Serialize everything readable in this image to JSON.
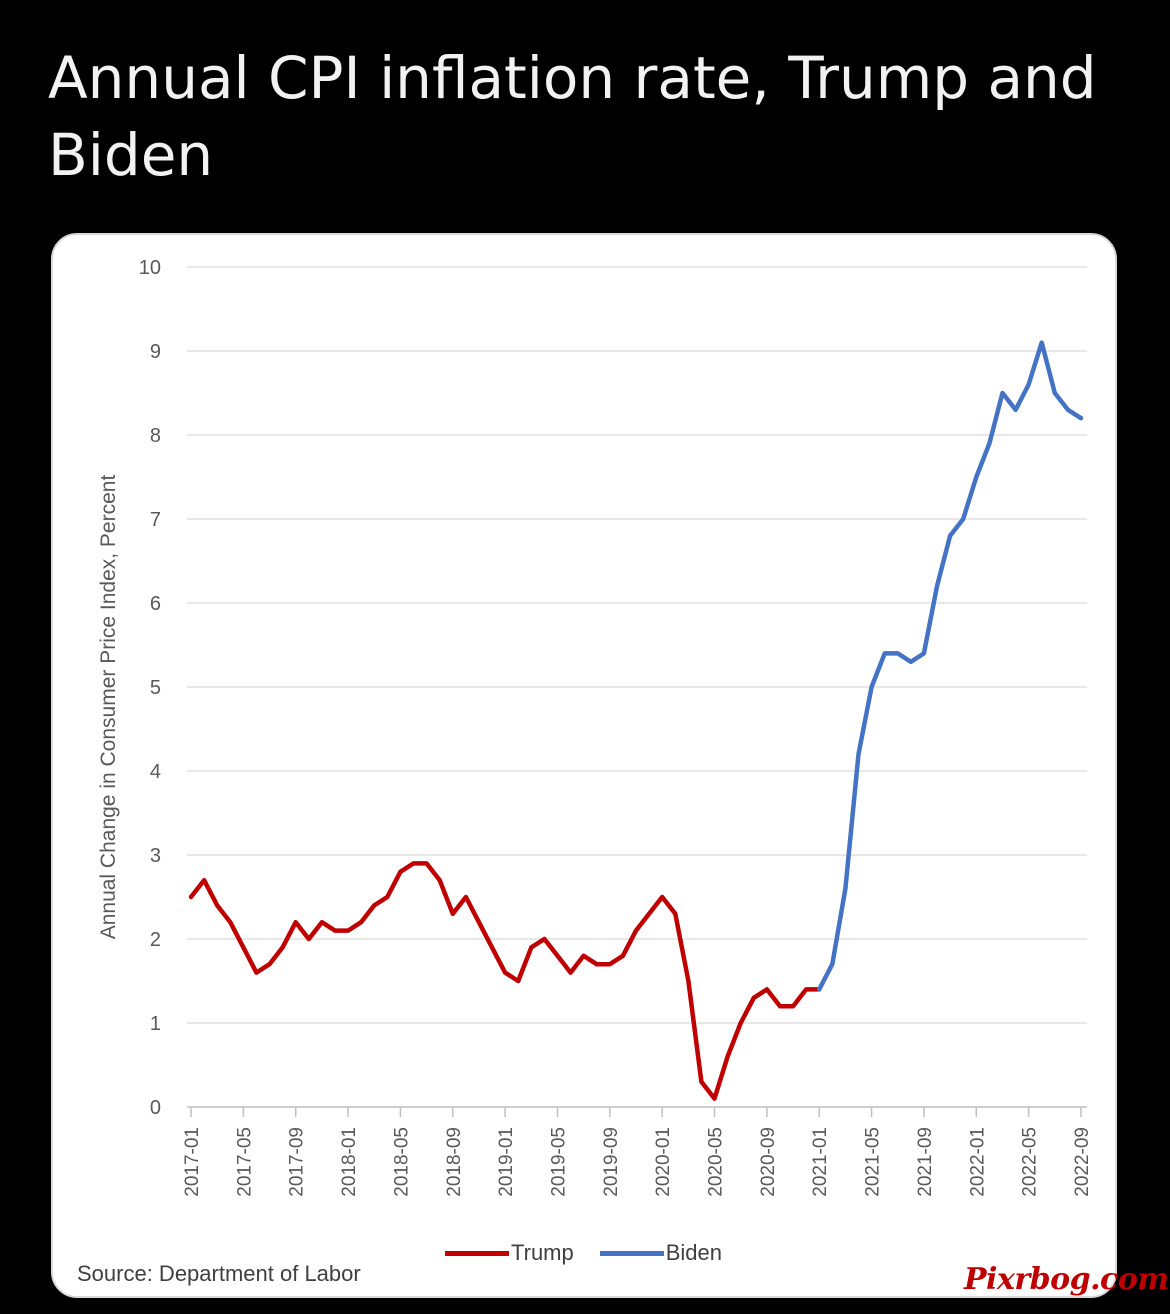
{
  "post": {
    "title": "Annual CPI inflation rate, Trump and Biden"
  },
  "chart_data": {
    "type": "line",
    "title": "",
    "xlabel": "",
    "ylabel": "Annual Change in Consumer Price Index, Percent",
    "ylim": [
      0,
      10
    ],
    "yticks": [
      "0",
      "1",
      "2",
      "3",
      "4",
      "5",
      "6",
      "7",
      "8",
      "9",
      "10"
    ],
    "x_tick_labels": [
      "2017-01",
      "2017-05",
      "2017-09",
      "2018-01",
      "2018-05",
      "2018-09",
      "2019-01",
      "2019-05",
      "2019-09",
      "2020-01",
      "2020-05",
      "2020-09",
      "2021-01",
      "2021-05",
      "2021-09",
      "2022-01",
      "2022-05",
      "2022-09"
    ],
    "grid": true,
    "legend_position": "bottom",
    "series": [
      {
        "name": "Trump",
        "color": "#c00000",
        "x": [
          "2017-01",
          "2017-02",
          "2017-03",
          "2017-04",
          "2017-05",
          "2017-06",
          "2017-07",
          "2017-08",
          "2017-09",
          "2017-10",
          "2017-11",
          "2017-12",
          "2018-01",
          "2018-02",
          "2018-03",
          "2018-04",
          "2018-05",
          "2018-06",
          "2018-07",
          "2018-08",
          "2018-09",
          "2018-10",
          "2018-11",
          "2018-12",
          "2019-01",
          "2019-02",
          "2019-03",
          "2019-04",
          "2019-05",
          "2019-06",
          "2019-07",
          "2019-08",
          "2019-09",
          "2019-10",
          "2019-11",
          "2019-12",
          "2020-01",
          "2020-02",
          "2020-03",
          "2020-04",
          "2020-05",
          "2020-06",
          "2020-07",
          "2020-08",
          "2020-09",
          "2020-10",
          "2020-11",
          "2020-12",
          "2021-01"
        ],
        "values": [
          2.5,
          2.7,
          2.4,
          2.2,
          1.9,
          1.6,
          1.7,
          1.9,
          2.2,
          2.0,
          2.2,
          2.1,
          2.1,
          2.2,
          2.4,
          2.5,
          2.8,
          2.9,
          2.9,
          2.7,
          2.3,
          2.5,
          2.2,
          1.9,
          1.6,
          1.5,
          1.9,
          2.0,
          1.8,
          1.6,
          1.8,
          1.7,
          1.7,
          1.8,
          2.1,
          2.3,
          2.5,
          2.3,
          1.5,
          0.3,
          0.1,
          0.6,
          1.0,
          1.3,
          1.4,
          1.2,
          1.2,
          1.4,
          1.4
        ]
      },
      {
        "name": "Biden",
        "color": "#4472c4",
        "x": [
          "2021-01",
          "2021-02",
          "2021-03",
          "2021-04",
          "2021-05",
          "2021-06",
          "2021-07",
          "2021-08",
          "2021-09",
          "2021-10",
          "2021-11",
          "2021-12",
          "2022-01",
          "2022-02",
          "2022-03",
          "2022-04",
          "2022-05",
          "2022-06",
          "2022-07",
          "2022-08",
          "2022-09"
        ],
        "values": [
          1.4,
          1.7,
          2.6,
          4.2,
          5.0,
          5.4,
          5.4,
          5.3,
          5.4,
          6.2,
          6.8,
          7.0,
          7.5,
          7.9,
          8.5,
          8.3,
          8.6,
          9.1,
          8.5,
          8.3,
          8.2
        ]
      }
    ]
  },
  "legend": {
    "trump_label": "Trump",
    "biden_label": "Biden",
    "trump_color": "#c00000",
    "biden_color": "#4472c4"
  },
  "source": "Source: Department of Labor",
  "watermark": "Pixrbog.com"
}
